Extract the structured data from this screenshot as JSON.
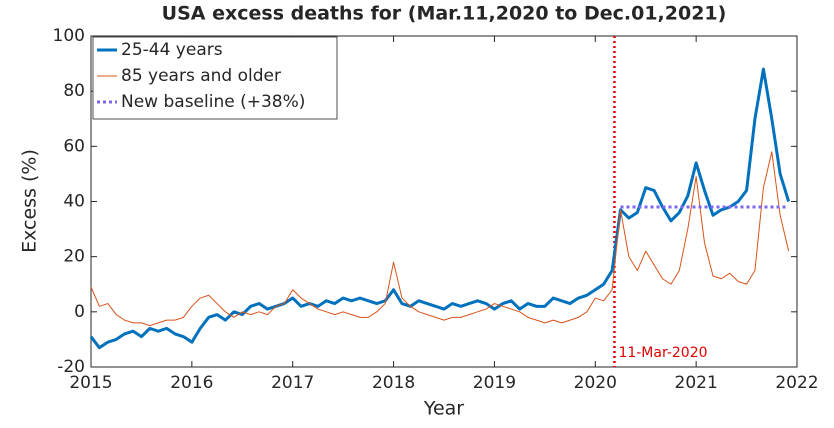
{
  "chart_data": {
    "type": "line",
    "title": "USA excess deaths for (Mar.11,2020 to Dec.01,2021)",
    "xlabel": "Year",
    "ylabel": "Excess (%)",
    "xlim": [
      2015,
      2022
    ],
    "ylim": [
      -20,
      100
    ],
    "xticks": [
      2015,
      2016,
      2017,
      2018,
      2019,
      2020,
      2021,
      2022
    ],
    "yticks": [
      -20,
      0,
      20,
      40,
      60,
      80,
      100
    ],
    "grid": false,
    "legend": "upper left",
    "x": [
      2015,
      2015.083,
      2015.167,
      2015.25,
      2015.333,
      2015.417,
      2015.5,
      2015.583,
      2015.667,
      2015.75,
      2015.833,
      2015.917,
      2016,
      2016.083,
      2016.167,
      2016.25,
      2016.333,
      2016.417,
      2016.5,
      2016.583,
      2016.667,
      2016.75,
      2016.833,
      2016.917,
      2017,
      2017.083,
      2017.167,
      2017.25,
      2017.333,
      2017.417,
      2017.5,
      2017.583,
      2017.667,
      2017.75,
      2017.833,
      2017.917,
      2018,
      2018.083,
      2018.167,
      2018.25,
      2018.333,
      2018.417,
      2018.5,
      2018.583,
      2018.667,
      2018.75,
      2018.833,
      2018.917,
      2019,
      2019.083,
      2019.167,
      2019.25,
      2019.333,
      2019.417,
      2019.5,
      2019.583,
      2019.667,
      2019.75,
      2019.833,
      2019.917,
      2020,
      2020.083,
      2020.167,
      2020.25,
      2020.333,
      2020.417,
      2020.5,
      2020.583,
      2020.667,
      2020.75,
      2020.833,
      2020.917,
      2021,
      2021.083,
      2021.167,
      2021.25,
      2021.333,
      2021.417,
      2021.5,
      2021.583,
      2021.667,
      2021.75,
      2021.833,
      2021.917
    ],
    "series": [
      {
        "name": "25-44 years",
        "color": "#0072bd",
        "width": 3,
        "style": "solid",
        "values": [
          -9,
          -13,
          -11,
          -10,
          -8,
          -7,
          -9,
          -6,
          -7,
          -6,
          -8,
          -9,
          -11,
          -6,
          -2,
          -1,
          -3,
          0,
          -1,
          2,
          3,
          1,
          2,
          3,
          5,
          2,
          3,
          2,
          4,
          3,
          5,
          4,
          5,
          4,
          3,
          4,
          8,
          3,
          2,
          4,
          3,
          2,
          1,
          3,
          2,
          3,
          4,
          3,
          1,
          3,
          4,
          1,
          3,
          2,
          2,
          5,
          4,
          3,
          5,
          6,
          8,
          10,
          15,
          37,
          34,
          36,
          45,
          44,
          38,
          33,
          36,
          42,
          54,
          44,
          35,
          37,
          38,
          40,
          44,
          70,
          88,
          70,
          50,
          40
        ]
      },
      {
        "name": "85 years and older",
        "color": "#d95319",
        "width": 1,
        "style": "solid",
        "values": [
          9,
          2,
          3,
          -1,
          -3,
          -4,
          -4,
          -5,
          -4,
          -3,
          -3,
          -2,
          2,
          5,
          6,
          3,
          0,
          -2,
          0,
          -1,
          0,
          -1,
          2,
          3,
          8,
          5,
          3,
          1,
          0,
          -1,
          0,
          -1,
          -2,
          -2,
          0,
          3,
          18,
          5,
          2,
          0,
          -1,
          -2,
          -3,
          -2,
          -2,
          -1,
          0,
          1,
          3,
          2,
          1,
          0,
          -2,
          -3,
          -4,
          -3,
          -4,
          -3,
          -2,
          0,
          5,
          4,
          8,
          37,
          20,
          15,
          22,
          17,
          12,
          10,
          15,
          30,
          49,
          25,
          13,
          12,
          14,
          11,
          10,
          15,
          45,
          58,
          35,
          22
        ]
      },
      {
        "name": "New baseline (+38%)",
        "color": "#7b68ee",
        "width": 3,
        "style": "dotted",
        "x": [
          2020.25,
          2021.917
        ],
        "values": [
          38,
          38
        ]
      }
    ],
    "annotations": [
      {
        "text": "11-Mar-2020",
        "x": 2020.19,
        "color": "#e00000"
      }
    ]
  }
}
